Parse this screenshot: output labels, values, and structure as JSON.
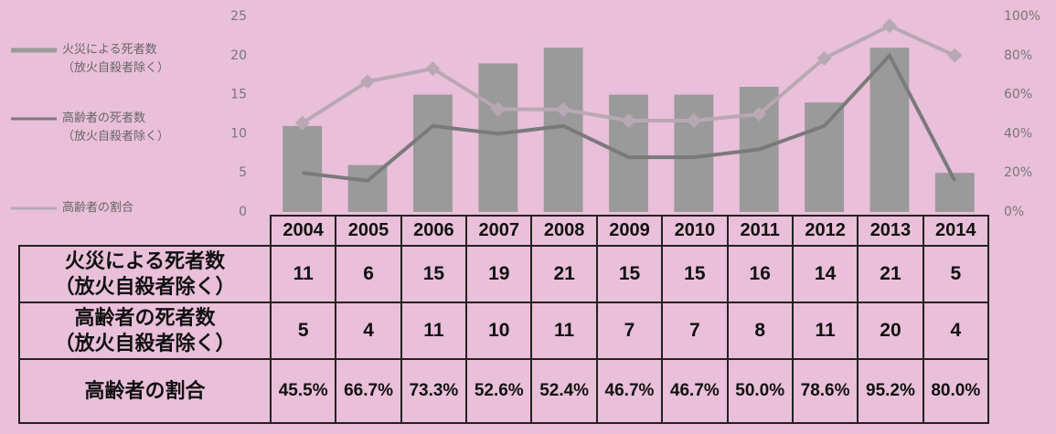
{
  "chart_data": {
    "type": "bar-line",
    "categories": [
      "2004",
      "2005",
      "2006",
      "2007",
      "2008",
      "2009",
      "2010",
      "2011",
      "2012",
      "2013",
      "2014"
    ],
    "series": [
      {
        "name": "火災による死者数\n（放火自殺者除く）",
        "type": "bar",
        "color": "#9a9a9a",
        "values": [
          11,
          6,
          15,
          19,
          21,
          15,
          15,
          16,
          14,
          21,
          5
        ]
      },
      {
        "name": "高齢者の死者数\n（放火自殺者除く）",
        "type": "line",
        "color": "#7a7a7a",
        "values": [
          5,
          4,
          11,
          10,
          11,
          7,
          7,
          8,
          11,
          20,
          4
        ]
      },
      {
        "name": "高齢者の割合",
        "type": "line",
        "axis": "y2",
        "color": "#b8a8b4",
        "marker": "diamond",
        "values": [
          45.5,
          66.7,
          73.3,
          52.6,
          52.4,
          46.7,
          46.7,
          50.0,
          78.6,
          95.2,
          80.0
        ],
        "value_labels": [
          "45.5%",
          "66.7%",
          "73.3%",
          "52.6%",
          "52.4%",
          "46.7%",
          "46.7%",
          "50.0%",
          "78.6%",
          "95.2%",
          "80.0%"
        ]
      }
    ],
    "ylim": [
      0,
      25
    ],
    "yticks": [
      0,
      5,
      10,
      15,
      20,
      25
    ],
    "y2lim": [
      0,
      100
    ],
    "y2ticks": [
      {
        "value": 0,
        "label": "0%"
      },
      {
        "value": 20,
        "label": "20%"
      },
      {
        "value": 40,
        "label": "40%"
      },
      {
        "value": 60,
        "label": "60%"
      },
      {
        "value": 80,
        "label": "80%"
      },
      {
        "value": 100,
        "label": "100%"
      }
    ],
    "legend": "left",
    "grid": false
  }
}
